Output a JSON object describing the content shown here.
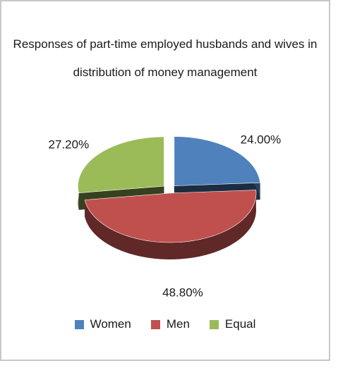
{
  "chart_data": {
    "type": "pie3d",
    "title": "Responses of part-time employed husbands and wives in distribution of money management",
    "categories": [
      "Women",
      "Men",
      "Equal"
    ],
    "values": [
      24.0,
      48.8,
      27.2
    ],
    "value_labels": [
      "24.00%",
      "48.80%",
      "27.20%"
    ],
    "colors": [
      "#4f81bd",
      "#c0504d",
      "#9bbb59"
    ],
    "legend": "bottom"
  }
}
